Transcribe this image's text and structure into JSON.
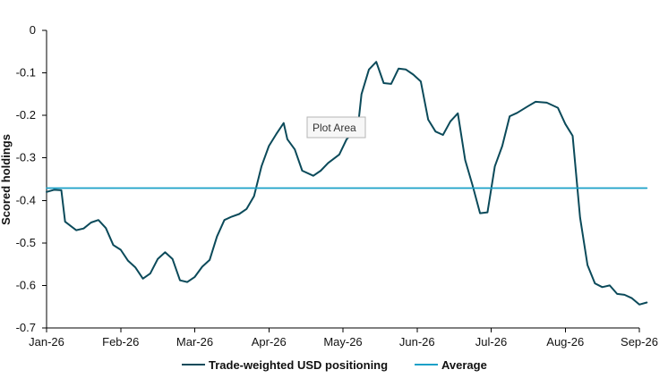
{
  "chart_data": {
    "type": "line",
    "ylabel": "Scored holdings",
    "ylim": [
      -0.7,
      0
    ],
    "y_ticks": [
      0,
      -0.1,
      -0.2,
      -0.3,
      -0.4,
      -0.5,
      -0.6,
      -0.7
    ],
    "x_ticks": [
      "Jan-26",
      "Feb-26",
      "Mar-26",
      "Apr-26",
      "May-26",
      "Jun-26",
      "Jul-26",
      "Aug-26",
      "Sep-26"
    ],
    "grid": false,
    "legend_position": "bottom",
    "series": [
      {
        "name": "Trade-weighted USD positioning",
        "color": "#0b4a5a",
        "points": [
          [
            0.0,
            -0.38
          ],
          [
            0.1,
            -0.375
          ],
          [
            0.2,
            -0.376
          ],
          [
            0.25,
            -0.45
          ],
          [
            0.4,
            -0.47
          ],
          [
            0.5,
            -0.466
          ],
          [
            0.6,
            -0.452
          ],
          [
            0.7,
            -0.446
          ],
          [
            0.8,
            -0.465
          ],
          [
            0.9,
            -0.505
          ],
          [
            1.0,
            -0.516
          ],
          [
            1.1,
            -0.542
          ],
          [
            1.2,
            -0.558
          ],
          [
            1.3,
            -0.584
          ],
          [
            1.4,
            -0.572
          ],
          [
            1.5,
            -0.538
          ],
          [
            1.6,
            -0.522
          ],
          [
            1.7,
            -0.538
          ],
          [
            1.8,
            -0.588
          ],
          [
            1.9,
            -0.592
          ],
          [
            2.0,
            -0.58
          ],
          [
            2.1,
            -0.556
          ],
          [
            2.2,
            -0.54
          ],
          [
            2.3,
            -0.485
          ],
          [
            2.4,
            -0.446
          ],
          [
            2.5,
            -0.438
          ],
          [
            2.6,
            -0.432
          ],
          [
            2.7,
            -0.42
          ],
          [
            2.8,
            -0.39
          ],
          [
            2.9,
            -0.32
          ],
          [
            3.0,
            -0.272
          ],
          [
            3.1,
            -0.244
          ],
          [
            3.2,
            -0.218
          ],
          [
            3.25,
            -0.256
          ],
          [
            3.35,
            -0.28
          ],
          [
            3.45,
            -0.33
          ],
          [
            3.6,
            -0.342
          ],
          [
            3.7,
            -0.33
          ],
          [
            3.8,
            -0.312
          ],
          [
            3.95,
            -0.292
          ],
          [
            4.05,
            -0.256
          ],
          [
            4.2,
            -0.23
          ],
          [
            4.25,
            -0.15
          ],
          [
            4.35,
            -0.092
          ],
          [
            4.45,
            -0.074
          ],
          [
            4.55,
            -0.124
          ],
          [
            4.65,
            -0.126
          ],
          [
            4.75,
            -0.09
          ],
          [
            4.85,
            -0.092
          ],
          [
            4.95,
            -0.104
          ],
          [
            5.05,
            -0.12
          ],
          [
            5.15,
            -0.21
          ],
          [
            5.25,
            -0.238
          ],
          [
            5.35,
            -0.246
          ],
          [
            5.45,
            -0.214
          ],
          [
            5.55,
            -0.195
          ],
          [
            5.65,
            -0.305
          ],
          [
            5.75,
            -0.365
          ],
          [
            5.85,
            -0.43
          ],
          [
            5.95,
            -0.428
          ],
          [
            6.05,
            -0.32
          ],
          [
            6.15,
            -0.272
          ],
          [
            6.25,
            -0.202
          ],
          [
            6.35,
            -0.194
          ],
          [
            6.5,
            -0.178
          ],
          [
            6.6,
            -0.168
          ],
          [
            6.75,
            -0.17
          ],
          [
            6.9,
            -0.182
          ],
          [
            7.0,
            -0.22
          ],
          [
            7.1,
            -0.248
          ],
          [
            7.2,
            -0.44
          ],
          [
            7.3,
            -0.552
          ],
          [
            7.4,
            -0.595
          ],
          [
            7.5,
            -0.604
          ],
          [
            7.6,
            -0.6
          ],
          [
            7.7,
            -0.62
          ],
          [
            7.8,
            -0.622
          ],
          [
            7.9,
            -0.63
          ],
          [
            8.0,
            -0.645
          ],
          [
            8.1,
            -0.64
          ]
        ]
      },
      {
        "name": "Average",
        "color": "#1aa0c8",
        "points": [
          [
            0.0,
            -0.371
          ],
          [
            8.1,
            -0.371
          ]
        ]
      }
    ],
    "tooltip": "Plot Area"
  }
}
